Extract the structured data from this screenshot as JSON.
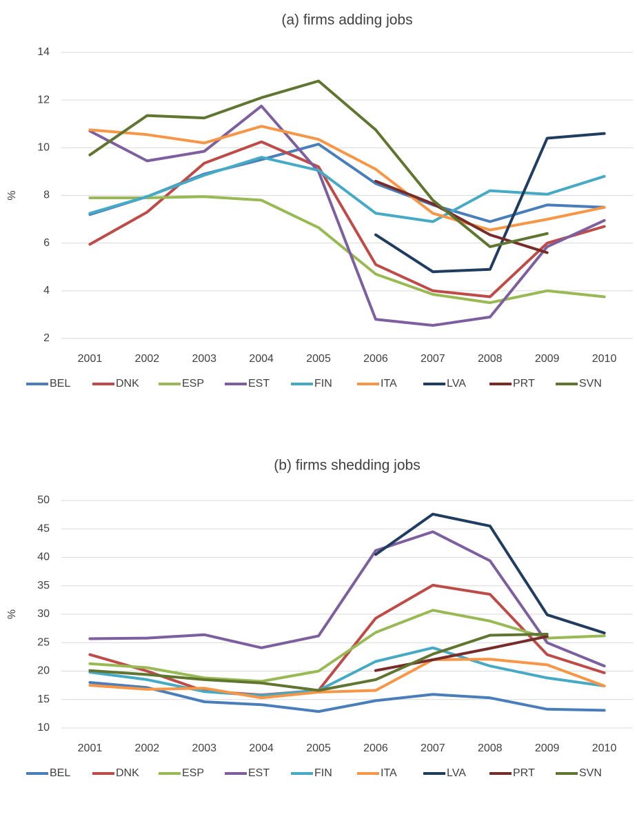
{
  "chart_data": [
    {
      "type": "line",
      "title": "(a) firms adding jobs",
      "y_label": "%",
      "categories": [
        "2001",
        "2002",
        "2003",
        "2004",
        "2005",
        "2006",
        "2007",
        "2008",
        "2009",
        "2010"
      ],
      "ylim": [
        2,
        14
      ],
      "yticks": [
        2,
        4,
        6,
        8,
        10,
        12,
        14
      ],
      "grid": true,
      "legend": "bottom",
      "series": [
        {
          "name": "BEL",
          "color": "#4a7ebb",
          "values": [
            7.2,
            7.95,
            8.9,
            9.5,
            10.15,
            8.5,
            7.6,
            6.9,
            7.6,
            7.5
          ]
        },
        {
          "name": "DNK",
          "color": "#be4b48",
          "values": [
            5.95,
            7.3,
            9.35,
            10.25,
            9.2,
            5.1,
            4.0,
            3.75,
            6.0,
            6.7
          ]
        },
        {
          "name": "ESP",
          "color": "#98b954",
          "values": [
            7.9,
            7.9,
            7.95,
            7.8,
            6.65,
            4.7,
            3.85,
            3.5,
            4.0,
            3.75
          ]
        },
        {
          "name": "EST",
          "color": "#7d5fa0",
          "values": [
            10.7,
            9.45,
            9.85,
            11.75,
            9.0,
            2.8,
            2.55,
            2.9,
            5.85,
            6.95
          ]
        },
        {
          "name": "FIN",
          "color": "#46aac5",
          "values": [
            7.25,
            7.95,
            8.85,
            9.6,
            9.05,
            7.25,
            6.9,
            8.2,
            8.05,
            8.8
          ]
        },
        {
          "name": "ITA",
          "color": "#f79646",
          "values": [
            10.75,
            10.55,
            10.2,
            10.9,
            10.35,
            9.1,
            7.25,
            6.55,
            7.0,
            7.5
          ]
        },
        {
          "name": "LVA",
          "color": "#203d61",
          "values": [
            null,
            null,
            null,
            null,
            null,
            6.35,
            4.8,
            4.9,
            10.4,
            10.6
          ]
        },
        {
          "name": "PRT",
          "color": "#772c2a",
          "values": [
            null,
            null,
            null,
            null,
            null,
            8.6,
            7.65,
            6.35,
            5.6,
            null
          ]
        },
        {
          "name": "SVN",
          "color": "#5f7530",
          "values": [
            9.7,
            11.35,
            11.25,
            12.1,
            12.8,
            10.75,
            7.8,
            5.85,
            6.4,
            null
          ]
        }
      ]
    },
    {
      "type": "line",
      "title": "(b) firms shedding jobs",
      "y_label": "%",
      "categories": [
        "2001",
        "2002",
        "2003",
        "2004",
        "2005",
        "2006",
        "2007",
        "2008",
        "2009",
        "2010"
      ],
      "ylim": [
        10,
        50
      ],
      "yticks": [
        10,
        15,
        20,
        25,
        30,
        35,
        40,
        45,
        50
      ],
      "grid": true,
      "legend": "bottom",
      "series": [
        {
          "name": "BEL",
          "color": "#4a7ebb",
          "values": [
            18.0,
            17.1,
            14.6,
            14.1,
            12.9,
            14.8,
            15.9,
            15.3,
            13.3,
            13.1
          ]
        },
        {
          "name": "DNK",
          "color": "#be4b48",
          "values": [
            22.9,
            20.0,
            16.5,
            15.8,
            16.6,
            29.3,
            35.1,
            33.5,
            22.9,
            19.7
          ]
        },
        {
          "name": "ESP",
          "color": "#98b954",
          "values": [
            21.3,
            20.6,
            18.8,
            18.2,
            20.0,
            26.8,
            30.7,
            28.8,
            25.8,
            26.2
          ]
        },
        {
          "name": "EST",
          "color": "#7d5fa0",
          "values": [
            25.7,
            25.8,
            26.4,
            24.1,
            26.2,
            41.2,
            44.5,
            39.4,
            25.0,
            20.9
          ]
        },
        {
          "name": "FIN",
          "color": "#46aac5",
          "values": [
            19.8,
            18.5,
            16.4,
            15.7,
            16.6,
            21.7,
            24.1,
            20.9,
            18.8,
            17.4
          ]
        },
        {
          "name": "ITA",
          "color": "#f79646",
          "values": [
            17.5,
            16.8,
            17.0,
            15.3,
            16.3,
            16.6,
            22.0,
            22.1,
            21.1,
            17.4
          ]
        },
        {
          "name": "LVA",
          "color": "#203d61",
          "values": [
            null,
            null,
            null,
            null,
            null,
            40.5,
            47.6,
            45.5,
            29.9,
            26.7
          ]
        },
        {
          "name": "PRT",
          "color": "#772c2a",
          "values": [
            null,
            null,
            null,
            null,
            null,
            20.1,
            22.0,
            24.0,
            26.1,
            null
          ]
        },
        {
          "name": "SVN",
          "color": "#5f7530",
          "values": [
            20.1,
            19.4,
            18.5,
            17.9,
            16.6,
            18.5,
            23.0,
            26.3,
            26.5,
            null
          ]
        }
      ]
    }
  ]
}
